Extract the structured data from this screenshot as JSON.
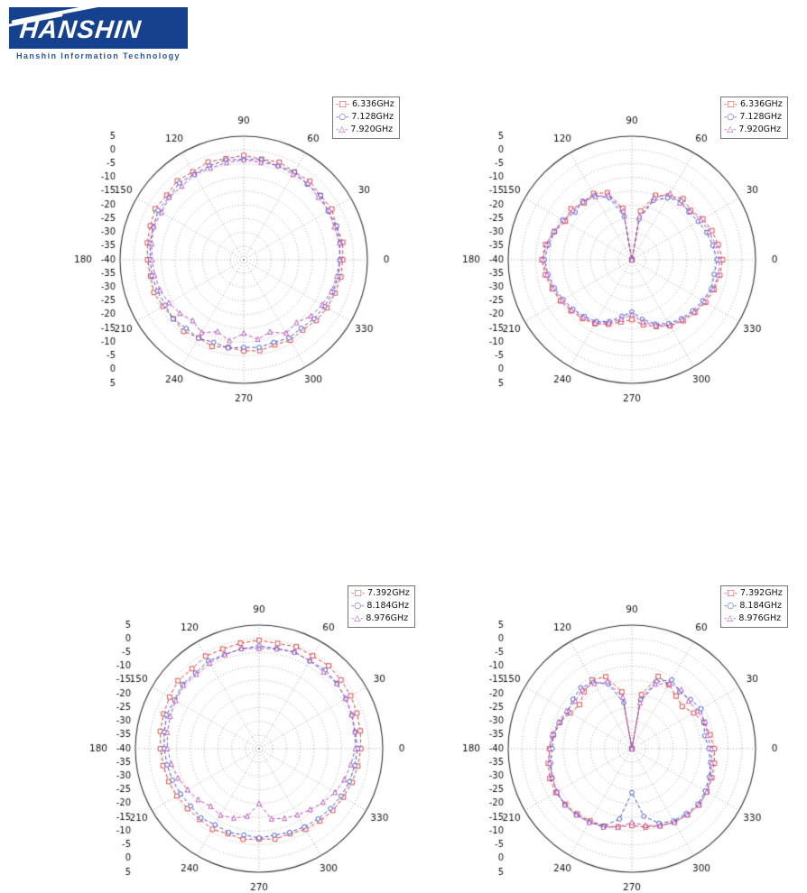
{
  "page": {
    "background": "#ffffff"
  },
  "logo": {
    "title": "HANSHIN",
    "subtitle": "Hanshin Information Technology",
    "box_color": "#16418e",
    "subtitle_color": "#2a52a0"
  },
  "polar_axes": {
    "r_min": -40,
    "r_max": 5,
    "r_step": 5,
    "r_unit": "dB",
    "angle_step": 30,
    "angle_labels": [
      "0",
      "30",
      "60",
      "90",
      "120",
      "150",
      "180",
      "210",
      "240",
      "270",
      "300",
      "330"
    ],
    "r_tick_labels": [
      "5",
      "0",
      "-5",
      "-10",
      "-15",
      "-20",
      "-25",
      "-30",
      "-35",
      "-40",
      "-35",
      "-30",
      "-25",
      "-20",
      "-15",
      "-10",
      "-5",
      "0",
      "5"
    ]
  },
  "chart_data": [
    {
      "type": "line",
      "subtype": "polar",
      "name": "low-band-pattern-azimuth",
      "angle_step_deg": 10,
      "r_axis": {
        "min": -40,
        "max": 5,
        "step": 5,
        "unit": "dB"
      },
      "legend_position": "top-right",
      "series": [
        {
          "name": "6.336GHz",
          "color": "#d93a3a",
          "marker": "square",
          "values": [
            -4,
            -3.4,
            -4.2,
            -3,
            -3.6,
            -2.6,
            -3.1,
            -2.2,
            -2.8,
            -2,
            -2.6,
            -2.1,
            -3,
            -2.4,
            -3.4,
            -2.8,
            -3.8,
            -4.4,
            -5,
            -5.6,
            -5.2,
            -6.1,
            -6.6,
            -6,
            -7.2,
            -6.4,
            -7.6,
            -6.8,
            -6.4,
            -7,
            -6.2,
            -6.6,
            -5.6,
            -5,
            -4.6,
            -4.1
          ]
        },
        {
          "name": "7.128GHz",
          "color": "#3a50c8",
          "marker": "circle",
          "values": [
            -5,
            -4.4,
            -4,
            -4.6,
            -3.5,
            -4.1,
            -3.1,
            -3.6,
            -3,
            -3.4,
            -3.1,
            -3.6,
            -4,
            -3.5,
            -4.5,
            -4,
            -5,
            -5.4,
            -6,
            -6.1,
            -6.6,
            -7,
            -6.5,
            -7.4,
            -7,
            -8,
            -7.4,
            -8.1,
            -7.6,
            -8,
            -7.1,
            -7.5,
            -6.6,
            -6,
            -5.5,
            -5.1
          ]
        },
        {
          "name": "7.920GHz",
          "color": "#b04fb0",
          "marker": "triangle",
          "values": [
            -5.1,
            -4.6,
            -5,
            -4.1,
            -4.6,
            -3.6,
            -4.1,
            -3.5,
            -4,
            -3.6,
            -4.1,
            -4.5,
            -4.1,
            -5,
            -4.6,
            -5.5,
            -5.1,
            -6,
            -6.6,
            -7.1,
            -7.6,
            -8.6,
            -9.6,
            -11.1,
            -9.4,
            -12.1,
            -10.1,
            -13.2,
            -10.6,
            -12,
            -9.1,
            -10.1,
            -8.1,
            -7.1,
            -6.1,
            -5.6
          ]
        }
      ]
    },
    {
      "type": "line",
      "subtype": "polar",
      "name": "low-band-pattern-elevation",
      "angle_step_deg": 10,
      "r_axis": {
        "min": -40,
        "max": 5,
        "step": 5,
        "unit": "dB"
      },
      "legend_position": "top-right",
      "series": [
        {
          "name": "6.336GHz",
          "color": "#d93a3a",
          "marker": "square",
          "values": [
            -7,
            -8.1,
            -9,
            -10.2,
            -12,
            -11,
            -13.1,
            -15,
            -22,
            -40,
            -21,
            -14,
            -12.1,
            -13,
            -11.1,
            -12,
            -10,
            -8.1,
            -7.2,
            -8,
            -9.1,
            -10,
            -11.1,
            -12,
            -13.1,
            -15,
            -17,
            -18.2,
            -16,
            -14.1,
            -12.2,
            -11,
            -10.1,
            -9,
            -8.2,
            -7.5
          ]
        },
        {
          "name": "7.128GHz",
          "color": "#3a50c8",
          "marker": "circle",
          "values": [
            -9,
            -10.1,
            -11,
            -12.1,
            -13,
            -12.1,
            -14,
            -17,
            -25,
            -40,
            -24,
            -16,
            -13,
            -12.1,
            -13.1,
            -11,
            -10.1,
            -9.1,
            -8.2,
            -9,
            -10,
            -11.1,
            -12,
            -13.1,
            -14,
            -16.1,
            -19,
            -21,
            -18,
            -15.1,
            -13.2,
            -12,
            -11.1,
            -10.2,
            -9.2,
            -9.6
          ]
        },
        {
          "name": "7.920GHz",
          "color": "#b04fb0",
          "marker": "triangle",
          "values": [
            -8,
            -9,
            -10.1,
            -11,
            -12.4,
            -13,
            -12.1,
            -16,
            -24,
            -40,
            -22,
            -15,
            -13.4,
            -12.4,
            -12,
            -11.4,
            -9.6,
            -8.4,
            -7.6,
            -8.6,
            -9.4,
            -10.6,
            -11.4,
            -12.6,
            -13.4,
            -15.6,
            -18,
            -20,
            -17,
            -14.6,
            -12.4,
            -11.6,
            -10.4,
            -9.6,
            -8.6,
            -8.1
          ]
        }
      ]
    },
    {
      "type": "line",
      "subtype": "polar",
      "name": "high-band-pattern-azimuth",
      "angle_step_deg": 10,
      "r_axis": {
        "min": -40,
        "max": 5,
        "step": 5,
        "unit": "dB"
      },
      "legend_position": "top-right",
      "series": [
        {
          "name": "7.392GHz",
          "color": "#d93a3a",
          "marker": "square",
          "values": [
            -3,
            -2.6,
            -2.1,
            -1.5,
            -1.1,
            -0.6,
            -1,
            -0.5,
            -1.1,
            -0.5,
            -1,
            -1.4,
            -1.1,
            -2,
            -1.5,
            -2.4,
            -3,
            -3.5,
            -4.1,
            -4.5,
            -5,
            -5.5,
            -6,
            -6.4,
            -6.1,
            -7,
            -6.5,
            -7.1,
            -6.6,
            -7,
            -6.1,
            -5.6,
            -5,
            -4.6,
            -4,
            -3.5
          ]
        },
        {
          "name": "8.184GHz",
          "color": "#3a50c8",
          "marker": "circle",
          "values": [
            -4.1,
            -4.5,
            -4,
            -3.6,
            -3,
            -2.6,
            -3.1,
            -2.5,
            -3,
            -2.6,
            -3.1,
            -3.5,
            -3.1,
            -4,
            -3.6,
            -4.5,
            -4.1,
            -5,
            -5.5,
            -6,
            -6.5,
            -7,
            -7.5,
            -7.1,
            -8,
            -7.6,
            -8.1,
            -7.5,
            -8,
            -7.6,
            -7.1,
            -6.6,
            -6.1,
            -5.5,
            -5,
            -4.6
          ]
        },
        {
          "name": "8.976GHz",
          "color": "#b04fb0",
          "marker": "triangle",
          "values": [
            -5,
            -4.6,
            -4.1,
            -3.5,
            -3.1,
            -3.5,
            -3,
            -2.6,
            -3.1,
            -3.5,
            -3,
            -3.6,
            -4,
            -4.6,
            -4.1,
            -5,
            -5.6,
            -6.1,
            -6.6,
            -7.6,
            -8.6,
            -10,
            -11.1,
            -12.6,
            -12,
            -13.1,
            -15,
            -20,
            -14,
            -13,
            -12.1,
            -11,
            -9.6,
            -8.1,
            -7,
            -6.1
          ]
        }
      ]
    },
    {
      "type": "line",
      "subtype": "polar",
      "name": "high-band-pattern-elevation",
      "angle_step_deg": 10,
      "r_axis": {
        "min": -40,
        "max": 5,
        "step": 5,
        "unit": "dB"
      },
      "legend_position": "top-right",
      "series": [
        {
          "name": "7.392GHz",
          "color": "#d93a3a",
          "marker": "square",
          "values": [
            -10,
            -11.1,
            -12,
            -14,
            -16.1,
            -15,
            -13.1,
            -12,
            -20,
            -40,
            -19,
            -12.1,
            -11.1,
            -13,
            -15.1,
            -14,
            -12.1,
            -11,
            -10,
            -9.1,
            -8.2,
            -8,
            -8.5,
            -9,
            -9.6,
            -10,
            -11.1,
            -12,
            -11,
            -10.1,
            -9.1,
            -8.5,
            -8.1,
            -8.5,
            -9,
            -9.5
          ]
        },
        {
          "name": "8.184GHz",
          "color": "#3a50c8",
          "marker": "circle",
          "values": [
            -12,
            -13.1,
            -12.1,
            -11,
            -12.1,
            -13,
            -11.1,
            -14,
            -22,
            -40,
            -23,
            -15,
            -12.1,
            -11.1,
            -12,
            -13.1,
            -12.1,
            -11.1,
            -11,
            -10,
            -9.1,
            -8.5,
            -8.1,
            -8.5,
            -9.1,
            -10,
            -14,
            -24,
            -15,
            -11.1,
            -9.6,
            -9.1,
            -8.6,
            -9.1,
            -10,
            -11
          ]
        },
        {
          "name": "8.976GHz",
          "color": "#b04fb0",
          "marker": "triangle",
          "values": [
            -11,
            -12.1,
            -11.5,
            -12.5,
            -13.1,
            -12,
            -12.6,
            -15,
            -23,
            -40,
            -21,
            -14,
            -12.6,
            -12,
            -13.1,
            -12.5,
            -11.6,
            -10.5,
            -10,
            -9.6,
            -9.1,
            -8.6,
            -8.1,
            -8.5,
            -9,
            -9.6,
            -11,
            -13.1,
            -11.6,
            -10.1,
            -9,
            -8.6,
            -8.1,
            -8.5,
            -9.5,
            -10.5
          ]
        }
      ]
    }
  ]
}
